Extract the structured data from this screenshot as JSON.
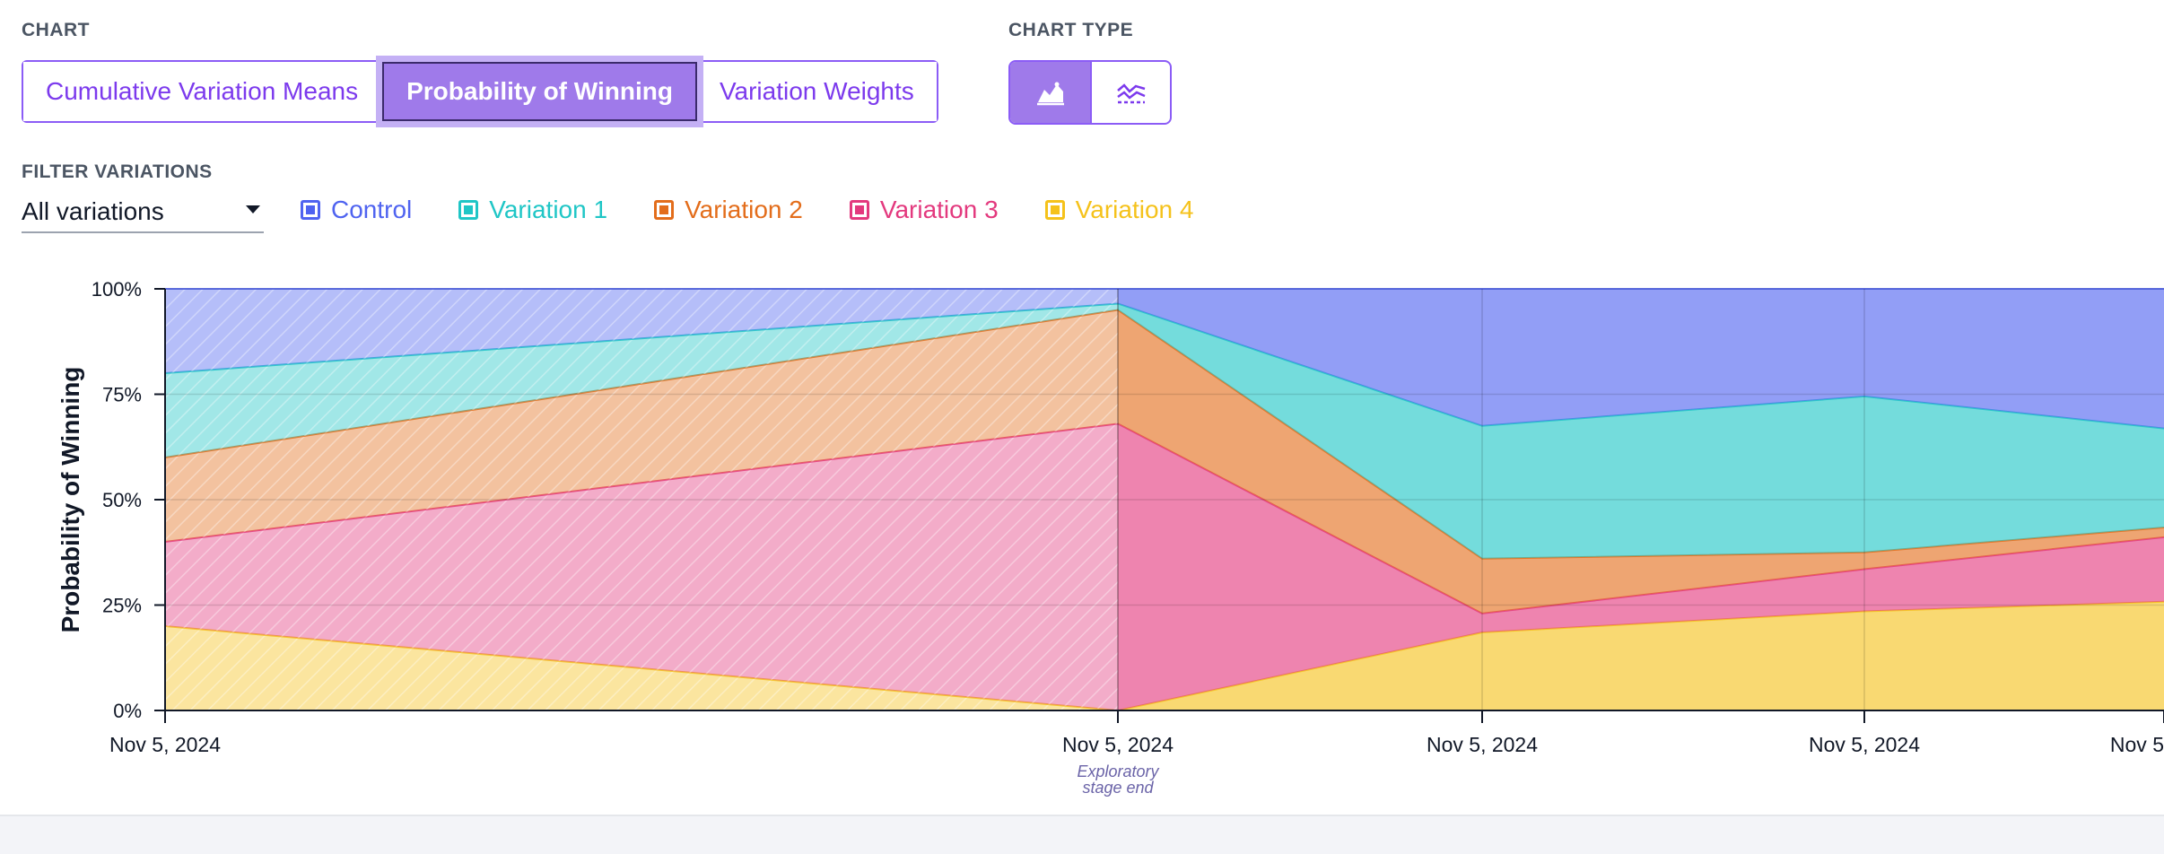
{
  "chart_section": {
    "label": "CHART"
  },
  "chart_tabs": [
    {
      "label": "Cumulative Variation Means",
      "active": false
    },
    {
      "label": "Probability of Winning",
      "active": true
    },
    {
      "label": "Variation Weights",
      "active": false
    }
  ],
  "chart_type": {
    "label": "CHART TYPE",
    "options": [
      {
        "icon": "area-chart-icon",
        "active": true
      },
      {
        "icon": "line-chart-icon",
        "active": false
      }
    ]
  },
  "filter": {
    "label": "FILTER VARIATIONS",
    "selected": "All variations"
  },
  "legend": [
    {
      "name": "Control",
      "color": "#4f63f0"
    },
    {
      "name": "Variation 1",
      "color": "#1fc6c6"
    },
    {
      "name": "Variation 2",
      "color": "#e36d1b"
    },
    {
      "name": "Variation 3",
      "color": "#e3397e"
    },
    {
      "name": "Variation 4",
      "color": "#f5c21b"
    }
  ],
  "chart_data": {
    "type": "area",
    "stacked": true,
    "ylabel": "Probability of Winning",
    "ylim": [
      0,
      100
    ],
    "yticks": [
      "0%",
      "25%",
      "50%",
      "75%",
      "100%"
    ],
    "x": [
      "Nov 5, 2024",
      "Nov 5, 2024",
      "Nov 5, 2024",
      "Nov 5, 2024",
      "Nov 5"
    ],
    "annotation": {
      "at_index": 1,
      "text": [
        "Exploratory",
        "stage end"
      ]
    },
    "series": [
      {
        "name": "Variation 4",
        "color": "#f5c21b",
        "values": [
          20,
          0,
          18.5,
          23.5,
          25.8
        ]
      },
      {
        "name": "Variation 3",
        "color": "#e3397e",
        "values": [
          20,
          68,
          4.5,
          10,
          15.3
        ]
      },
      {
        "name": "Variation 2",
        "color": "#e36d1b",
        "values": [
          20,
          27,
          13,
          4,
          2.3
        ]
      },
      {
        "name": "Variation 1",
        "color": "#1fc6c6",
        "values": [
          20,
          1.5,
          31.5,
          37,
          23.5
        ]
      },
      {
        "name": "Control",
        "color": "#4f63f0",
        "values": [
          20,
          3.5,
          32.5,
          25.5,
          33.1
        ]
      }
    ]
  }
}
